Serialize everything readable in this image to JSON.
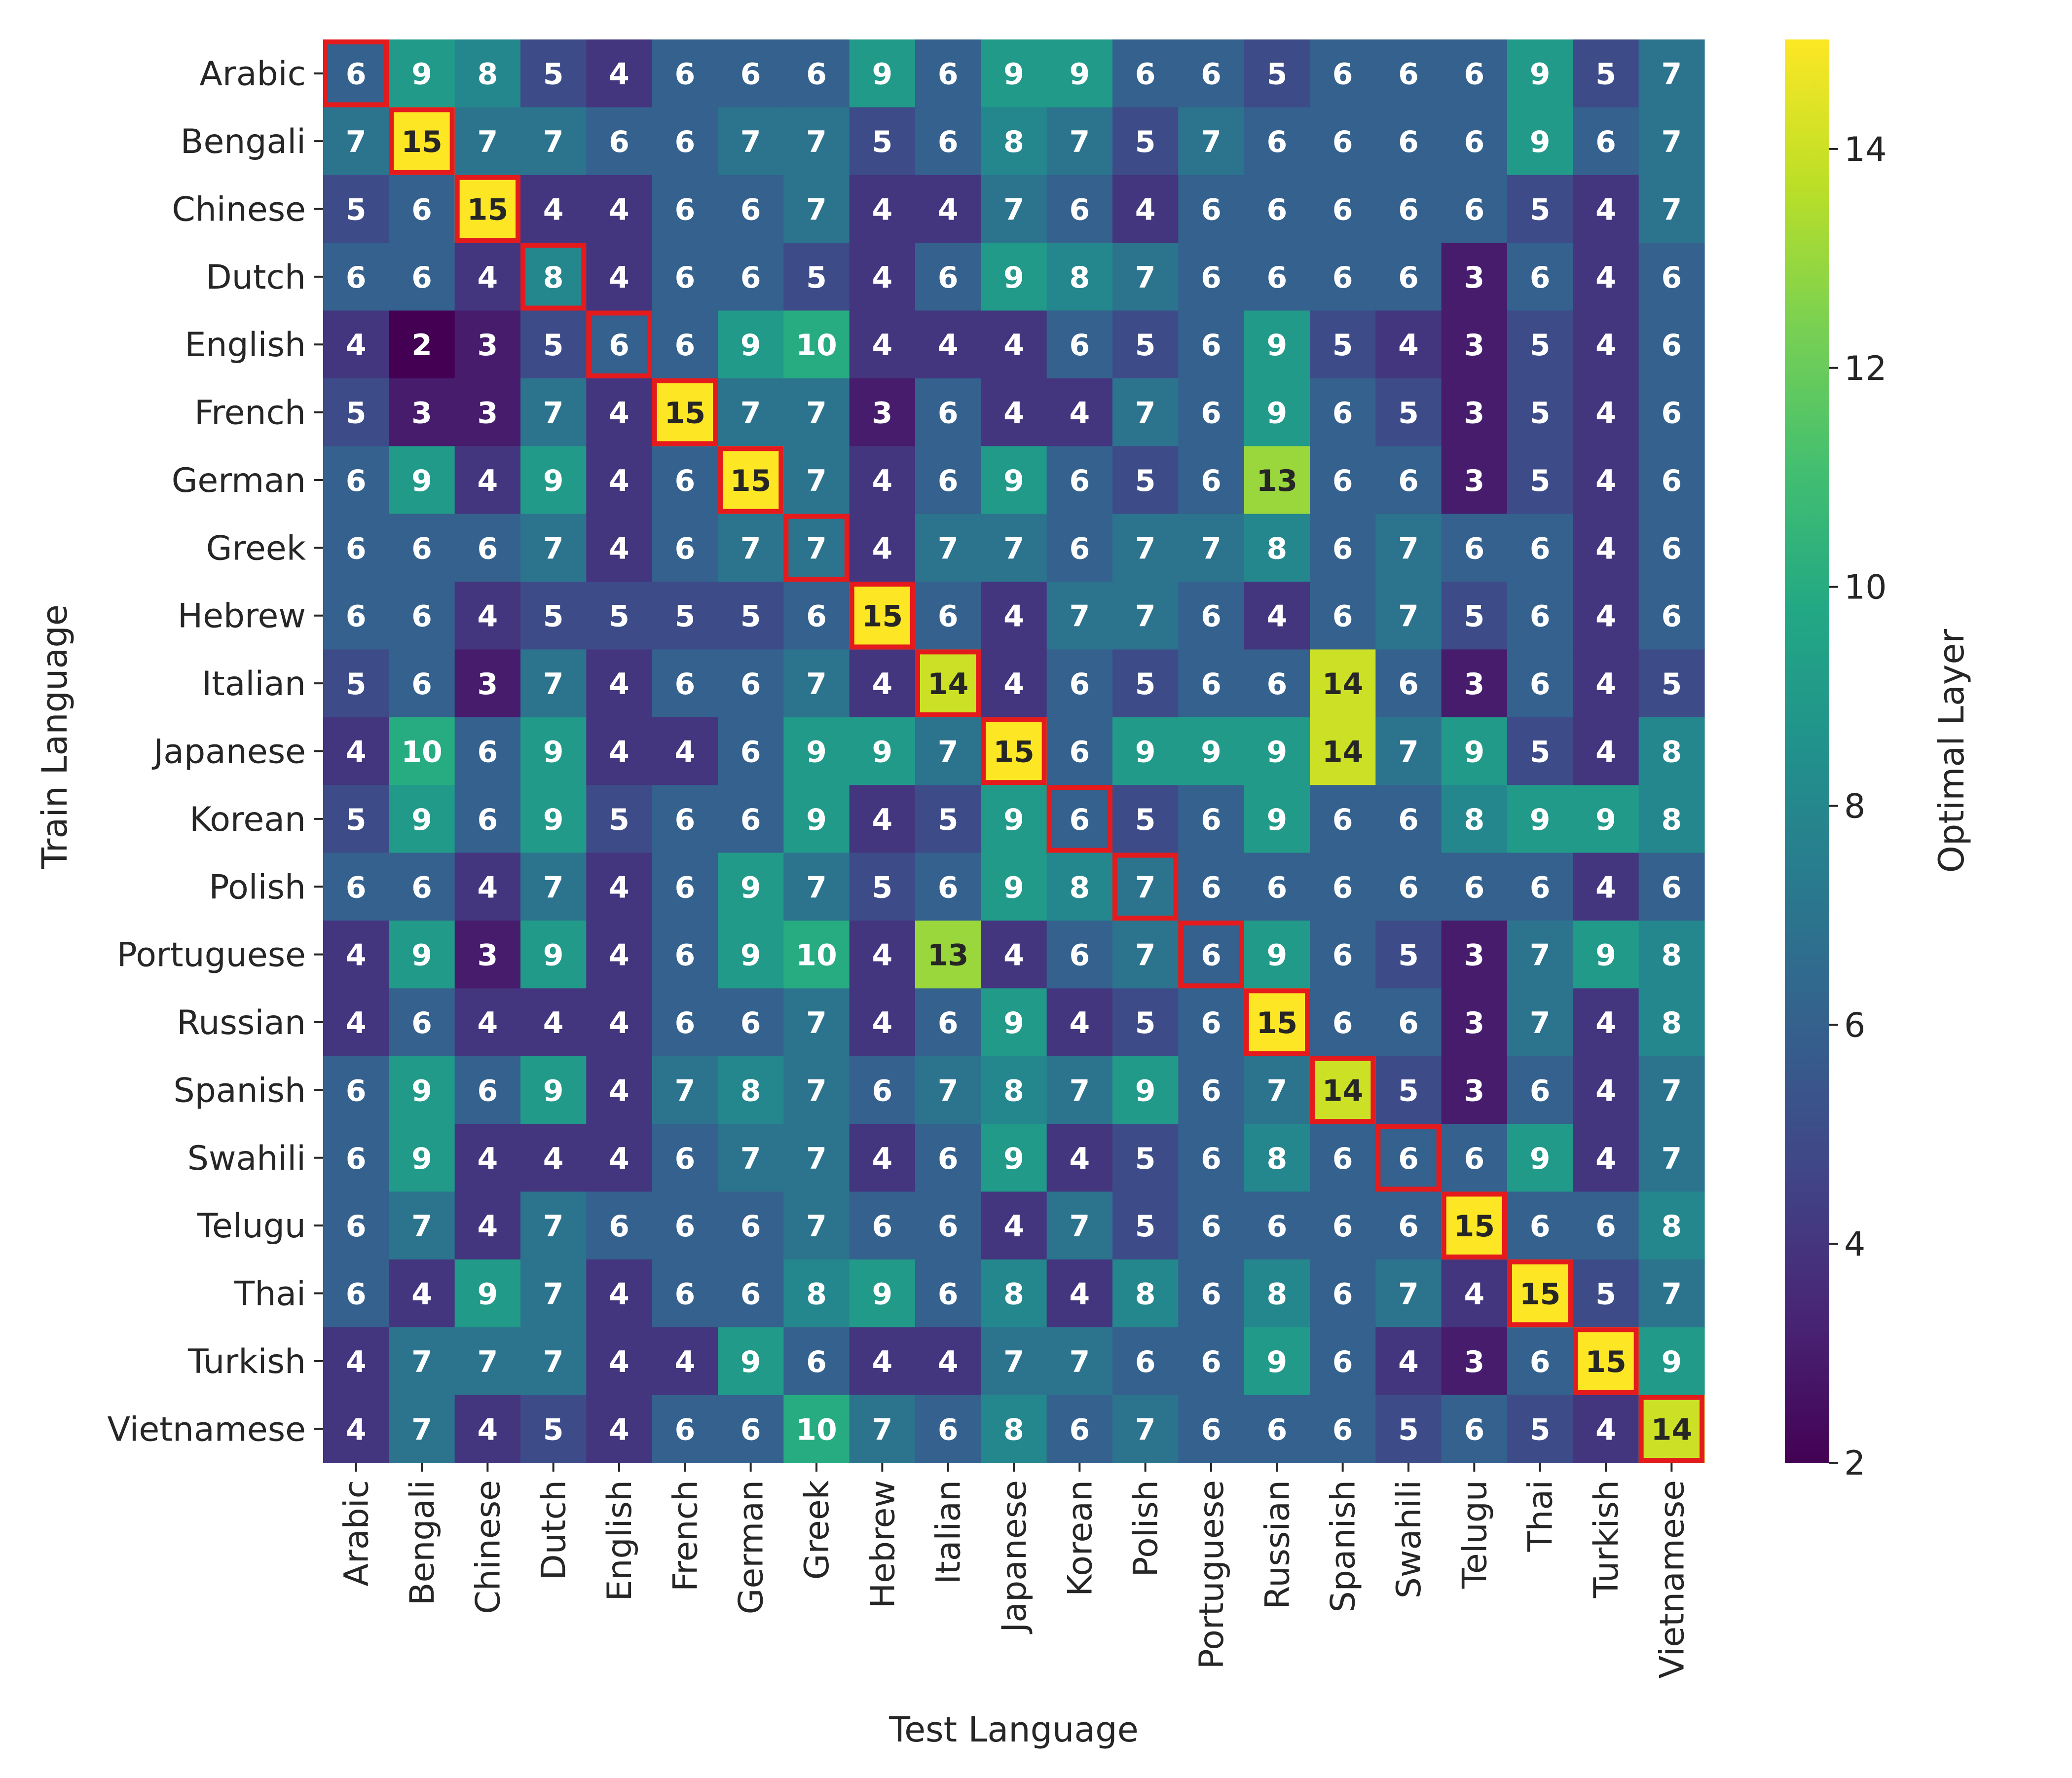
{
  "chart_data": {
    "type": "heatmap",
    "title": "",
    "xlabel": "Test Language",
    "ylabel": "Train Language",
    "colorbar_label": "Optimal Layer",
    "colormap": "viridis",
    "vmin": 2,
    "vmax": 15,
    "colorbar_ticks": [
      2,
      4,
      6,
      8,
      10,
      12,
      14
    ],
    "highlight_color": "#e41a1c",
    "highlight_rule": "diagonal",
    "x_categories": [
      "Arabic",
      "Bengali",
      "Chinese",
      "Dutch",
      "English",
      "French",
      "German",
      "Greek",
      "Hebrew",
      "Italian",
      "Japanese",
      "Korean",
      "Polish",
      "Portuguese",
      "Russian",
      "Spanish",
      "Swahili",
      "Telugu",
      "Thai",
      "Turkish",
      "Vietnamese"
    ],
    "y_categories": [
      "Arabic",
      "Bengali",
      "Chinese",
      "Dutch",
      "English",
      "French",
      "German",
      "Greek",
      "Hebrew",
      "Italian",
      "Japanese",
      "Korean",
      "Polish",
      "Portuguese",
      "Russian",
      "Spanish",
      "Swahili",
      "Telugu",
      "Thai",
      "Turkish",
      "Vietnamese"
    ],
    "values": [
      [
        6,
        9,
        8,
        5,
        4,
        6,
        6,
        6,
        9,
        6,
        9,
        9,
        6,
        6,
        5,
        6,
        6,
        6,
        9,
        5,
        7
      ],
      [
        7,
        15,
        7,
        7,
        6,
        6,
        7,
        7,
        5,
        6,
        8,
        7,
        5,
        7,
        6,
        6,
        6,
        6,
        9,
        6,
        7
      ],
      [
        5,
        6,
        15,
        4,
        4,
        6,
        6,
        7,
        4,
        4,
        7,
        6,
        4,
        6,
        6,
        6,
        6,
        6,
        5,
        4,
        7
      ],
      [
        6,
        6,
        4,
        8,
        4,
        6,
        6,
        5,
        4,
        6,
        9,
        8,
        7,
        6,
        6,
        6,
        6,
        3,
        6,
        4,
        6
      ],
      [
        4,
        2,
        3,
        5,
        6,
        6,
        9,
        10,
        4,
        4,
        4,
        6,
        5,
        6,
        9,
        5,
        4,
        3,
        5,
        4,
        6
      ],
      [
        5,
        3,
        3,
        7,
        4,
        15,
        7,
        7,
        3,
        6,
        4,
        4,
        7,
        6,
        9,
        6,
        5,
        3,
        5,
        4,
        6
      ],
      [
        6,
        9,
        4,
        9,
        4,
        6,
        15,
        7,
        4,
        6,
        9,
        6,
        5,
        6,
        13,
        6,
        6,
        3,
        5,
        4,
        6
      ],
      [
        6,
        6,
        6,
        7,
        4,
        6,
        7,
        7,
        4,
        7,
        7,
        6,
        7,
        7,
        8,
        6,
        7,
        6,
        6,
        4,
        6
      ],
      [
        6,
        6,
        4,
        5,
        5,
        5,
        5,
        6,
        15,
        6,
        4,
        7,
        7,
        6,
        4,
        6,
        7,
        5,
        6,
        4,
        6
      ],
      [
        5,
        6,
        3,
        7,
        4,
        6,
        6,
        7,
        4,
        14,
        4,
        6,
        5,
        6,
        6,
        14,
        6,
        3,
        6,
        4,
        5
      ],
      [
        4,
        10,
        6,
        9,
        4,
        4,
        6,
        9,
        9,
        7,
        15,
        6,
        9,
        9,
        9,
        14,
        7,
        9,
        5,
        4,
        8
      ],
      [
        5,
        9,
        6,
        9,
        5,
        6,
        6,
        9,
        4,
        5,
        9,
        6,
        5,
        6,
        9,
        6,
        6,
        8,
        9,
        9,
        8
      ],
      [
        6,
        6,
        4,
        7,
        4,
        6,
        9,
        7,
        5,
        6,
        9,
        8,
        7,
        6,
        6,
        6,
        6,
        6,
        6,
        4,
        6
      ],
      [
        4,
        9,
        3,
        9,
        4,
        6,
        9,
        10,
        4,
        13,
        4,
        6,
        7,
        6,
        9,
        6,
        5,
        3,
        7,
        9,
        8
      ],
      [
        4,
        6,
        4,
        4,
        4,
        6,
        6,
        7,
        4,
        6,
        9,
        4,
        5,
        6,
        15,
        6,
        6,
        3,
        7,
        4,
        8
      ],
      [
        6,
        9,
        6,
        9,
        4,
        7,
        8,
        7,
        6,
        7,
        8,
        7,
        9,
        6,
        7,
        14,
        5,
        3,
        6,
        4,
        7
      ],
      [
        6,
        9,
        4,
        4,
        4,
        6,
        7,
        7,
        4,
        6,
        9,
        4,
        5,
        6,
        8,
        6,
        6,
        6,
        9,
        4,
        7
      ],
      [
        6,
        7,
        4,
        7,
        6,
        6,
        6,
        7,
        6,
        6,
        4,
        7,
        5,
        6,
        6,
        6,
        6,
        15,
        6,
        6,
        8
      ],
      [
        6,
        4,
        9,
        7,
        4,
        6,
        6,
        8,
        9,
        6,
        8,
        4,
        8,
        6,
        8,
        6,
        7,
        4,
        15,
        5,
        7
      ],
      [
        4,
        7,
        7,
        7,
        4,
        4,
        9,
        6,
        4,
        4,
        7,
        7,
        6,
        6,
        9,
        6,
        4,
        3,
        6,
        15,
        9
      ],
      [
        4,
        7,
        4,
        5,
        4,
        6,
        6,
        10,
        7,
        6,
        8,
        6,
        7,
        6,
        6,
        6,
        5,
        6,
        5,
        4,
        14
      ]
    ]
  }
}
